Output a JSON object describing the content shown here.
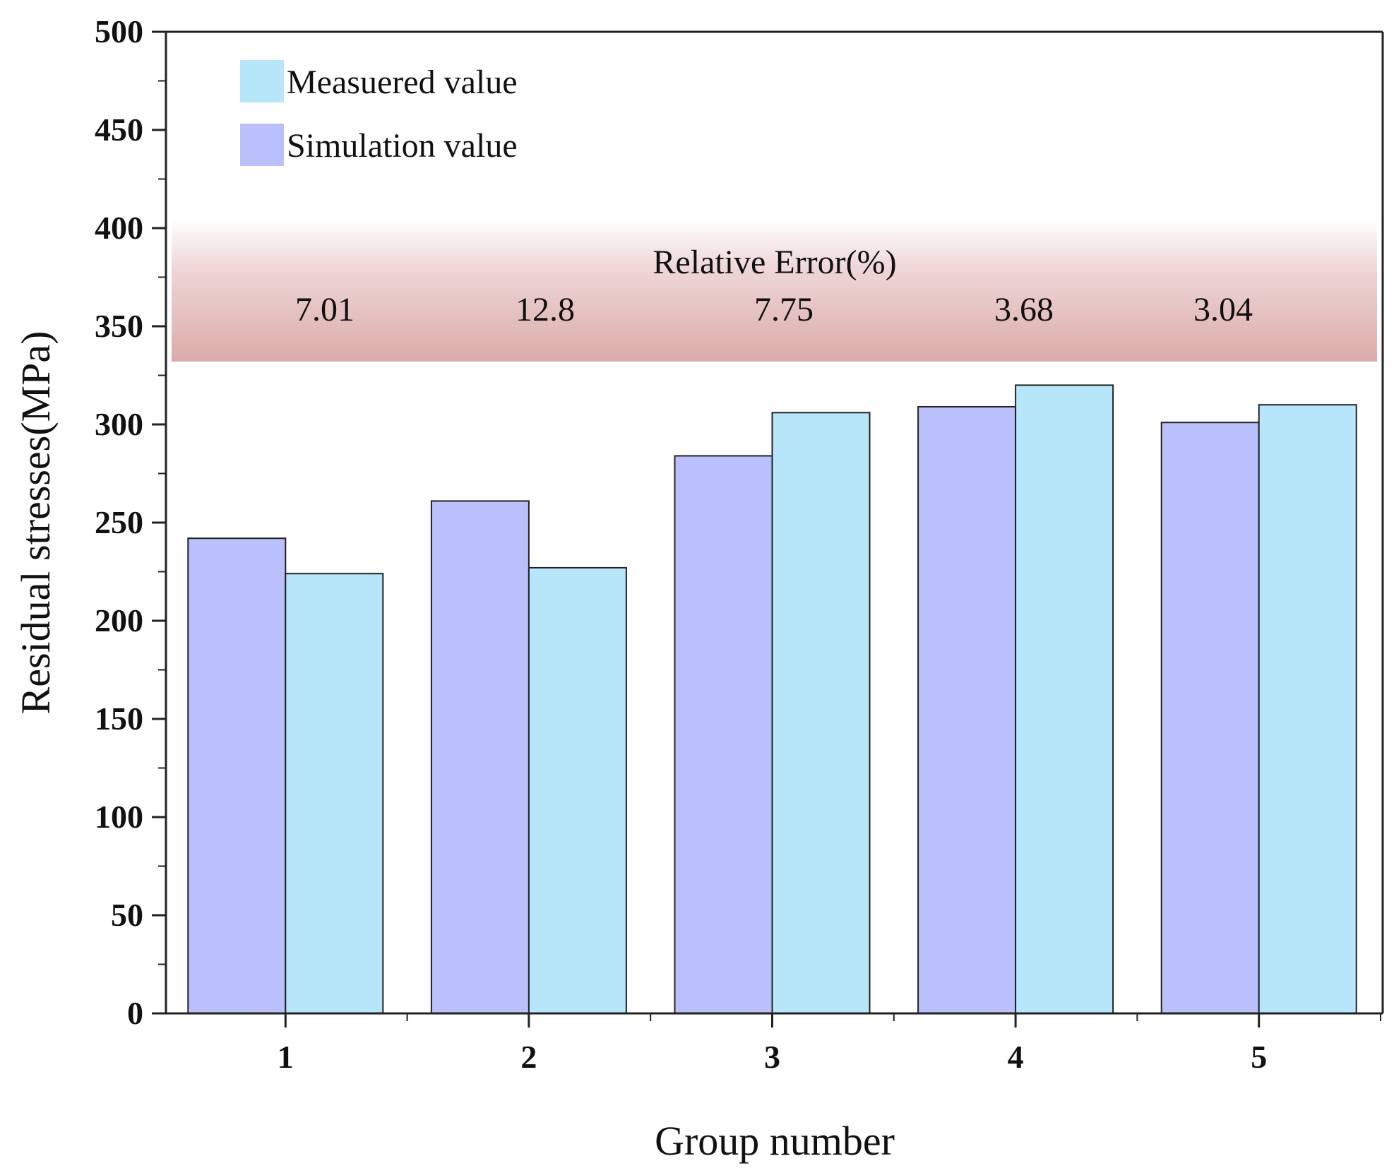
{
  "chart_data": {
    "type": "bar",
    "title": "",
    "xlabel": "Group number",
    "ylabel": "Residual stresses(MPa)",
    "categories": [
      "1",
      "2",
      "3",
      "4",
      "5"
    ],
    "series": [
      {
        "name": "Simulation value",
        "color": "#bac0fb",
        "values": [
          242,
          261,
          284,
          309,
          301
        ]
      },
      {
        "name": "Measuered value",
        "color": "#b7e6fb",
        "values": [
          224,
          227,
          306,
          320,
          310
        ]
      }
    ],
    "legend_order": [
      "Measuered value",
      "Simulation value"
    ],
    "legend_position": "top-left",
    "ylim": [
      0,
      500
    ],
    "yticks": [
      "0",
      "50",
      "100",
      "150",
      "200",
      "250",
      "300",
      "350",
      "400",
      "450",
      "500"
    ],
    "grid": false,
    "annotation": {
      "title": "Relative Error(%)",
      "values": [
        "7.01",
        "12.8",
        "7.75",
        "3.68",
        "3.04"
      ],
      "band_range": [
        332,
        405
      ],
      "band_color": "#d9a6a4"
    }
  }
}
